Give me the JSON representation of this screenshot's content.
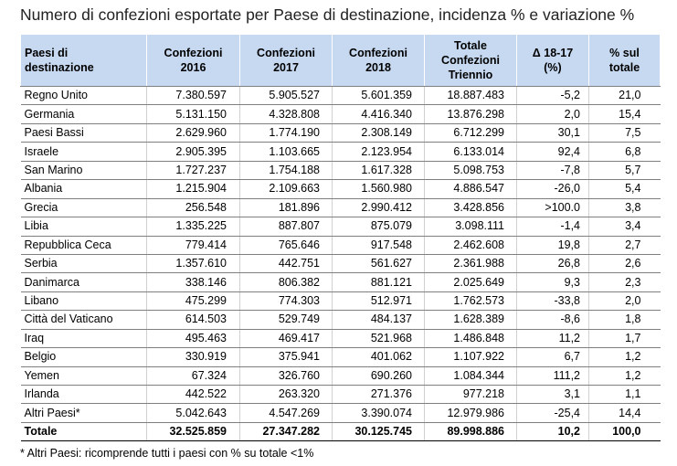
{
  "title": "Numero di confezioni esportate per Paese di destinazione, incidenza % e variazione %",
  "table": {
    "headers": [
      [
        "Paesi di",
        "destinazione"
      ],
      [
        "Confezioni",
        "2016"
      ],
      [
        "Confezioni",
        "2017"
      ],
      [
        "Confezioni",
        "2018"
      ],
      [
        "Totale",
        "Confezioni",
        "Triennio"
      ],
      [
        "Δ 18-17",
        "(%)"
      ],
      [
        "% sul",
        "totale"
      ]
    ],
    "rows": [
      [
        "Regno Unito",
        "7.380.597",
        "5.905.527",
        "5.601.359",
        "18.887.483",
        "-5,2",
        "21,0"
      ],
      [
        "Germania",
        "5.131.150",
        "4.328.808",
        "4.416.340",
        "13.876.298",
        "2,0",
        "15,4"
      ],
      [
        "Paesi Bassi",
        "2.629.960",
        "1.774.190",
        "2.308.149",
        "6.712.299",
        "30,1",
        "7,5"
      ],
      [
        "Israele",
        "2.905.395",
        "1.103.665",
        "2.123.954",
        "6.133.014",
        "92,4",
        "6,8"
      ],
      [
        "San Marino",
        "1.727.237",
        "1.754.188",
        "1.617.328",
        "5.098.753",
        "-7,8",
        "5,7"
      ],
      [
        "Albania",
        "1.215.904",
        "2.109.663",
        "1.560.980",
        "4.886.547",
        "-26,0",
        "5,4"
      ],
      [
        "Grecia",
        "256.548",
        "181.896",
        "2.990.412",
        "3.428.856",
        ">100.0",
        "3,8"
      ],
      [
        "Libia",
        "1.335.225",
        "887.807",
        "875.079",
        "3.098.111",
        "-1,4",
        "3,4"
      ],
      [
        "Repubblica Ceca",
        "779.414",
        "765.646",
        "917.548",
        "2.462.608",
        "19,8",
        "2,7"
      ],
      [
        "Serbia",
        "1.357.610",
        "442.751",
        "561.627",
        "2.361.988",
        "26,8",
        "2,6"
      ],
      [
        "Danimarca",
        "338.146",
        "806.382",
        "881.121",
        "2.025.649",
        "9,3",
        "2,3"
      ],
      [
        "Libano",
        "475.299",
        "774.303",
        "512.971",
        "1.762.573",
        "-33,8",
        "2,0"
      ],
      [
        "Città del Vaticano",
        "614.503",
        "529.749",
        "484.137",
        "1.628.389",
        "-8,6",
        "1,8"
      ],
      [
        "Iraq",
        "495.463",
        "469.417",
        "521.968",
        "1.486.848",
        "11,2",
        "1,7"
      ],
      [
        "Belgio",
        "330.919",
        "375.941",
        "401.062",
        "1.107.922",
        "6,7",
        "1,2"
      ],
      [
        "Yemen",
        "67.324",
        "326.760",
        "690.260",
        "1.084.344",
        "111,2",
        "1,2"
      ],
      [
        "Irlanda",
        "442.522",
        "263.320",
        "271.376",
        "977.218",
        "3,1",
        "1,1"
      ],
      [
        "Altri Paesi*",
        "5.042.643",
        "4.547.269",
        "3.390.074",
        "12.979.986",
        "-25,4",
        "14,4"
      ]
    ],
    "total": [
      "Totale",
      "32.525.859",
      "27.347.282",
      "30.125.745",
      "89.998.886",
      "10,2",
      "100,0"
    ]
  },
  "footnote": "* Altri Paesi: ricomprende tutti i paesi con % su totale <1%",
  "colors": {
    "header_bg": "#c6d9f1",
    "row_line": "#7f7f7f"
  }
}
